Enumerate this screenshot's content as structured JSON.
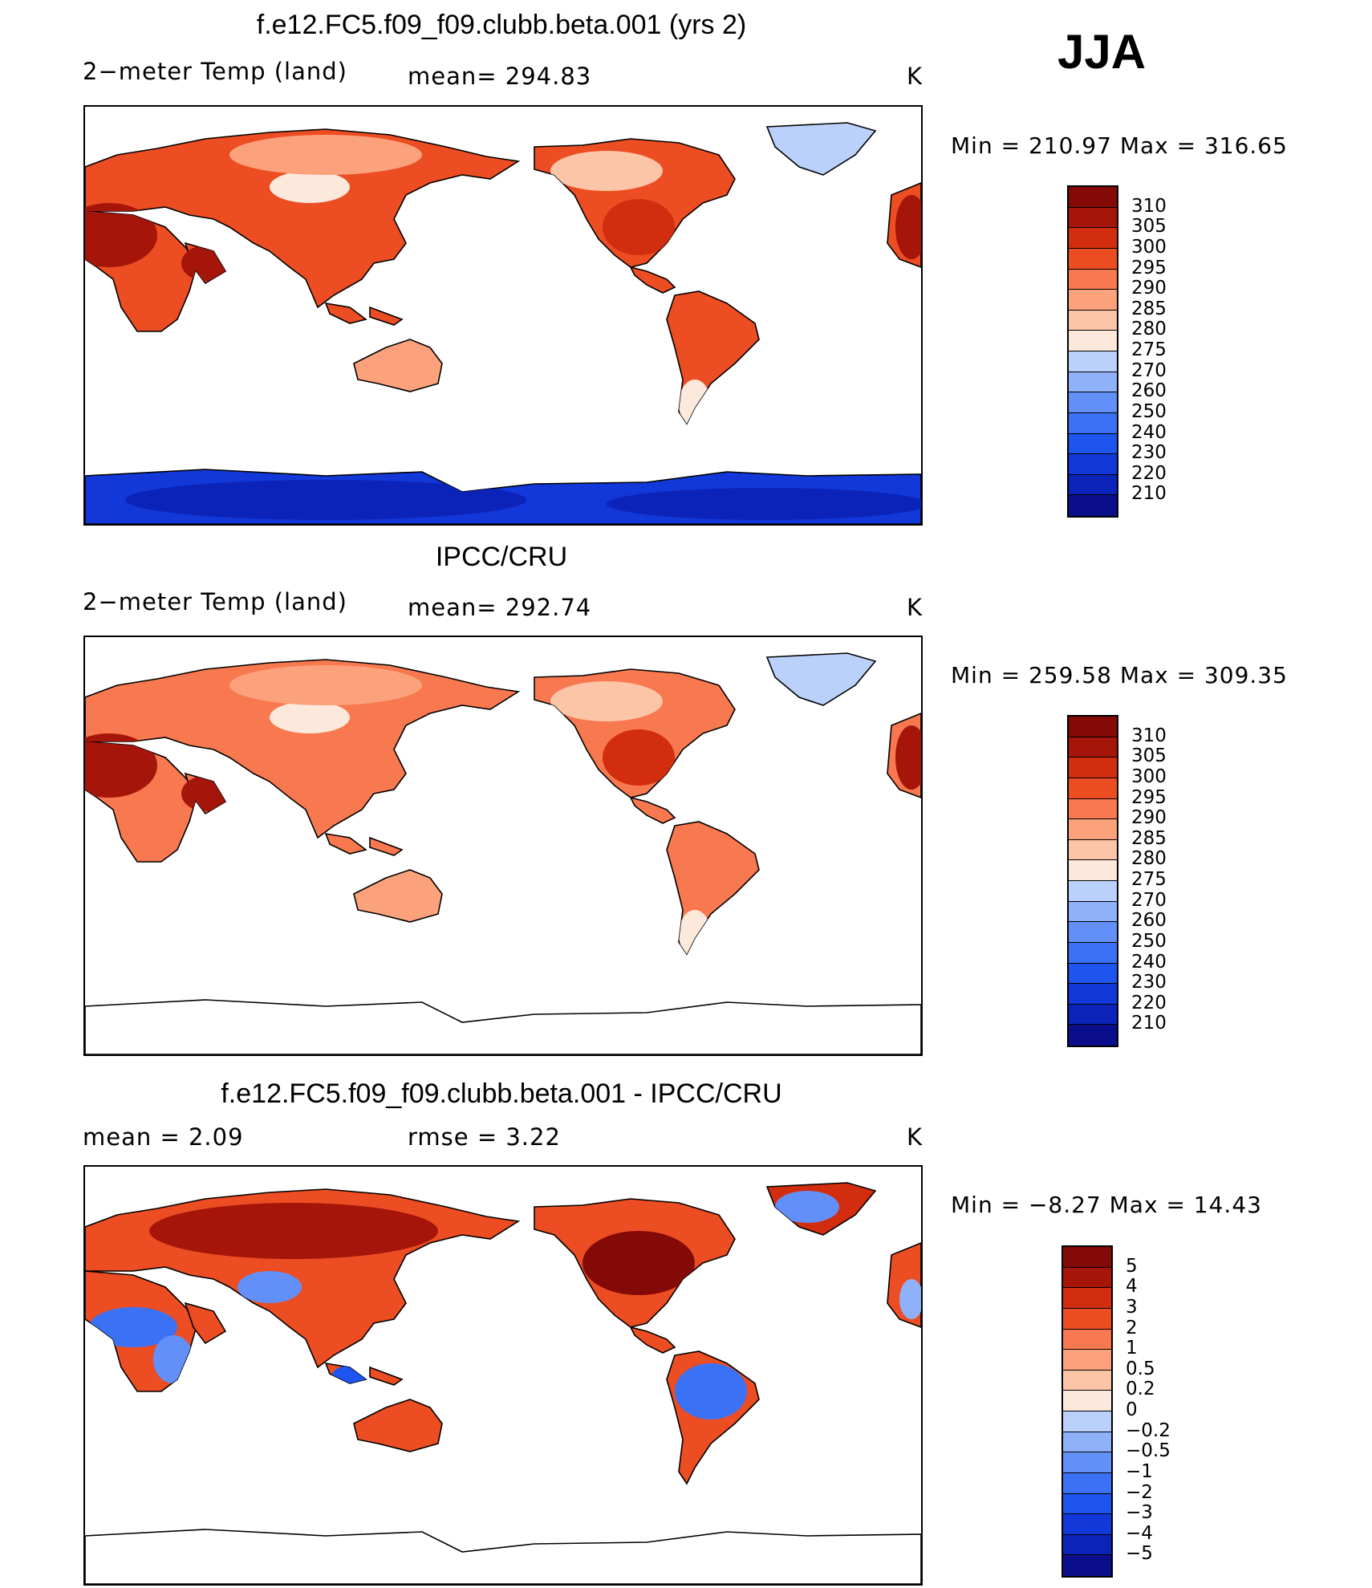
{
  "season": "JJA",
  "palette": {
    "temp": [
      "#0b0e8a",
      "#0b23b8",
      "#1238d9",
      "#1e55ee",
      "#3b72f5",
      "#6390f8",
      "#8fb1fa",
      "#bad1fb",
      "#dfeefd",
      "#fde9dc",
      "#fcc5a8",
      "#fba27d",
      "#f8784f",
      "#ec4d22",
      "#d22d0e",
      "#a5150a",
      "#830a06"
    ],
    "diff": [
      "#0b0e8a",
      "#0b23b8",
      "#1238d9",
      "#1e55ee",
      "#3b72f5",
      "#6390f8",
      "#8fb1fa",
      "#bad1fb",
      "#dfeefd",
      "#fde9dc",
      "#fcc5a8",
      "#fba27d",
      "#f8784f",
      "#ec4d22",
      "#d22d0e",
      "#a5150a",
      "#830a06"
    ]
  },
  "panels": [
    {
      "title": "f.e12.FC5.f09_f09.clubb.beta.001 (yrs 2)",
      "left_label": "2−meter Temp (land)",
      "mid_label": "mean=  294.83",
      "units": "K",
      "minmax": "Min  =  210.97  Max  =  316.65",
      "legend_labels": [
        "310",
        "305",
        "300",
        "295",
        "290",
        "285",
        "280",
        "275",
        "270",
        "260",
        "250",
        "240",
        "230",
        "220",
        "210"
      ],
      "map_kind": "model"
    },
    {
      "title": "IPCC/CRU",
      "left_label": "2−meter Temp (land)",
      "mid_label": "mean=  292.74",
      "units": "K",
      "minmax": "Min  =  259.58  Max  =  309.35",
      "legend_labels": [
        "310",
        "305",
        "300",
        "295",
        "290",
        "285",
        "280",
        "275",
        "270",
        "260",
        "250",
        "240",
        "230",
        "220",
        "210"
      ],
      "map_kind": "obs"
    },
    {
      "title": "f.e12.FC5.f09_f09.clubb.beta.001 - IPCC/CRU",
      "left_label": "mean  =      2.09",
      "mid_label": "rmse  =      3.22",
      "units": "K",
      "minmax": "Min  =     −8.27  Max  =     14.43",
      "legend_labels": [
        "5",
        "4",
        "3",
        "2",
        "1",
        "0.5",
        "0.2",
        "0",
        "−0.2",
        "−0.5",
        "−1",
        "−2",
        "−3",
        "−4",
        "−5"
      ],
      "map_kind": "diff"
    }
  ]
}
